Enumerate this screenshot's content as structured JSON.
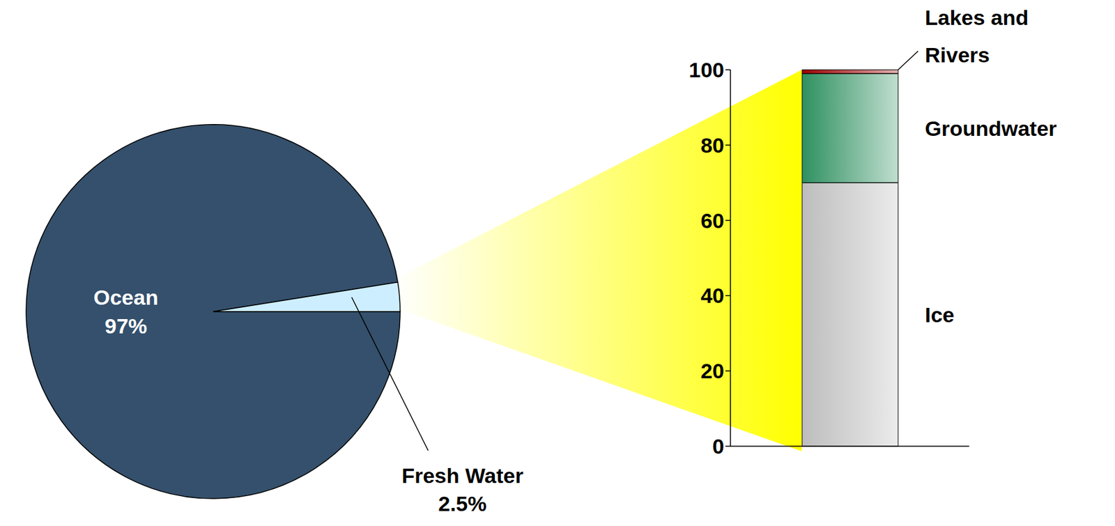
{
  "chart_data": [
    {
      "type": "pie",
      "categories": [
        "Ocean",
        "Fresh Water"
      ],
      "values": [
        97,
        2.5
      ],
      "value_labels": [
        "97%",
        "2.5%"
      ],
      "colors": [
        "#34506c",
        "#cceeff"
      ]
    },
    {
      "type": "bar",
      "stacked": true,
      "categories": [
        null
      ],
      "ylim": [
        0,
        100
      ],
      "yticks": [
        0,
        20,
        40,
        60,
        80,
        100
      ],
      "grid": false,
      "series": [
        {
          "name": "Ice",
          "color": "#bdbdbd",
          "values": [
            70
          ]
        },
        {
          "name": "Groundwater",
          "color": "#2e9060",
          "values": [
            29
          ]
        },
        {
          "name": "Lakes and Rivers",
          "color": "#a00000",
          "values": [
            1
          ]
        }
      ]
    }
  ]
}
